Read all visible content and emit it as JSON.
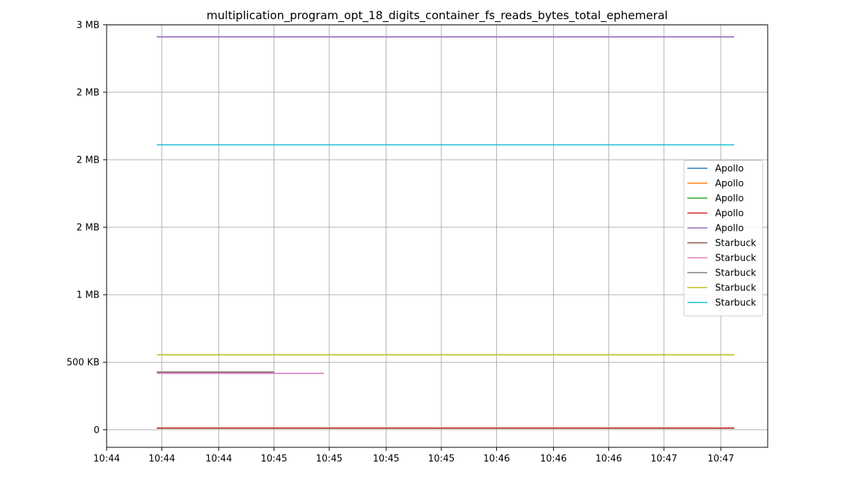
{
  "chart_data": {
    "type": "line",
    "title": "multiplication_program_opt_18_digits_container_fs_reads_bytes_total_ephemeral",
    "xlabel": "",
    "ylabel": "",
    "x_unit": "minutes after 10:44",
    "x": [
      0.3,
      3.75
    ],
    "xlim": [
      0.0,
      3.95
    ],
    "x_ticks": [
      0.0,
      0.33,
      0.67,
      1.0,
      1.33,
      1.67,
      2.0,
      2.33,
      2.67,
      3.0,
      3.33,
      3.67
    ],
    "x_tick_labels": [
      "10:44",
      "10:44",
      "10:44",
      "10:45",
      "10:45",
      "10:45",
      "10:45",
      "10:46",
      "10:46",
      "10:46",
      "10:47",
      "10:47"
    ],
    "ylim": [
      -130000,
      2999000
    ],
    "y_ticks": [
      0,
      500000,
      1000000,
      1500000,
      2000000,
      2500000,
      3000000
    ],
    "y_tick_labels": [
      "0",
      "500 KB",
      "1 MB",
      "2 MB",
      "2 MB",
      "2 MB",
      "3 MB"
    ],
    "grid": true,
    "legend_position": "center-right",
    "series": [
      {
        "name": "Apollo",
        "color": "#1f77b4",
        "x": [
          0.3,
          3.75
        ],
        "values": [
          12000,
          12000
        ]
      },
      {
        "name": "Apollo",
        "color": "#ff7f0e",
        "x": [
          0.3,
          3.75
        ],
        "values": [
          12000,
          12000
        ]
      },
      {
        "name": "Apollo",
        "color": "#2ca02c",
        "x": [
          0.3,
          3.75
        ],
        "values": [
          12000,
          12000
        ]
      },
      {
        "name": "Apollo",
        "color": "#d62728",
        "x": [
          0.3,
          3.75
        ],
        "values": [
          12000,
          12000
        ]
      },
      {
        "name": "Apollo",
        "color": "#9467bd",
        "x": [
          0.3,
          3.75
        ],
        "values": [
          2910000,
          2910000
        ]
      },
      {
        "name": "Starbuck",
        "color": "#8c564b",
        "x": [
          0.3,
          1.0
        ],
        "values": [
          425000,
          425000
        ]
      },
      {
        "name": "Starbuck",
        "color": "#e377c2",
        "x": [
          0.3,
          1.3
        ],
        "values": [
          418000,
          418000
        ]
      },
      {
        "name": "Starbuck",
        "color": "#7f7f7f",
        "x": [
          0.3,
          1.0
        ],
        "values": [
          428000,
          428000
        ]
      },
      {
        "name": "Starbuck",
        "color": "#bcbd22",
        "x": [
          0.3,
          3.75
        ],
        "values": [
          555000,
          555000
        ]
      },
      {
        "name": "Starbuck",
        "color": "#17becf",
        "x": [
          0.3,
          3.75
        ],
        "values": [
          2110000,
          2110000
        ]
      }
    ]
  }
}
